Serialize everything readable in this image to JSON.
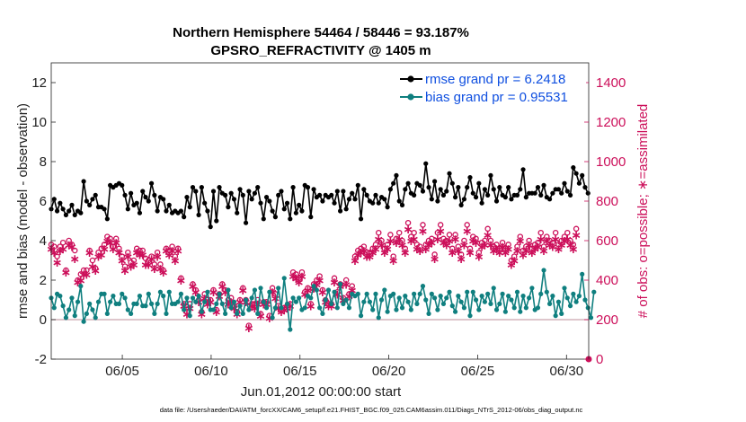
{
  "chart_data": {
    "type": "line",
    "title": "Northern Hemisphere 54464 / 58446 = 93.187%",
    "subtitle": "GPSRO_REFRACTIVITY @ 1405 m",
    "xlabel": "Jun.01,2012 00:00:00 start",
    "ylabel": "rmse and bias (model - observation)",
    "y2label": "# of obs: o=possible; ∗=assimilated",
    "footer": "data file: /Users/raeder/DAI/ATM_forcXX/CAM6_setup/f.e21.FHIST_BGC.f09_025.CAM6assim.011/Diags_NTrS_2012-06/obs_diag_output.nc",
    "xlim": [
      1.0,
      31.25
    ],
    "ylim": [
      -2,
      13
    ],
    "y2lim": [
      0,
      1500
    ],
    "x_ticks": [
      5,
      10,
      15,
      20,
      25,
      30
    ],
    "x_tick_labels": [
      "06/05",
      "06/10",
      "06/15",
      "06/20",
      "06/25",
      "06/30"
    ],
    "y_ticks": [
      -2,
      0,
      2,
      4,
      6,
      8,
      10,
      12
    ],
    "y_tick_labels": [
      "-2",
      "0",
      "2",
      "4",
      "6",
      "8",
      "10",
      "12"
    ],
    "y2_ticks": [
      0,
      200,
      400,
      600,
      800,
      1000,
      1200,
      1400
    ],
    "y2_tick_labels": [
      "0",
      "200",
      "400",
      "600",
      "800",
      "1000",
      "1200",
      "1400"
    ],
    "zero_line": 0,
    "colors": {
      "rmse": "#000000",
      "bias": "#0f7f7f",
      "obs": "#cc0f5a",
      "zero": "#c9a3ad",
      "legend_text": "#0f4fe0"
    },
    "series": [
      {
        "name": "rmse grand pr = 6.2418",
        "marker": "filled-circle",
        "values": [
          5.6,
          6.1,
          5.5,
          5.9,
          5.6,
          5.3,
          5.5,
          5.8,
          5.3,
          5.5,
          5.4,
          7.0,
          6.0,
          5.8,
          6.1,
          6.3,
          5.7,
          5.7,
          5.6,
          5.1,
          6.8,
          6.7,
          6.8,
          6.9,
          6.8,
          6.3,
          5.6,
          6.4,
          5.8,
          5.9,
          5.4,
          6.5,
          6.2,
          6.0,
          6.9,
          6.3,
          5.5,
          6.2,
          6.1,
          5.5,
          5.8,
          5.4,
          5.5,
          5.4,
          5.5,
          5.2,
          6.2,
          5.7,
          6.7,
          6.5,
          5.3,
          6.7,
          5.9,
          5.5,
          4.7,
          6.5,
          5.0,
          6.7,
          6.4,
          6.3,
          5.7,
          6.4,
          6.1,
          5.4,
          6.6,
          6.3,
          4.9,
          6.5,
          6.1,
          6.4,
          6.7,
          5.9,
          5.1,
          6.2,
          6.0,
          5.5,
          5.2,
          6.3,
          6.5,
          5.6,
          5.9,
          5.1,
          6.7,
          5.4,
          5.8,
          5.5,
          6.8,
          6.7,
          5.2,
          6.6,
          6.2,
          6.3,
          6.0,
          6.3,
          6.2,
          6.3,
          5.9,
          6.5,
          5.5,
          6.5,
          5.6,
          6.1,
          6.4,
          6.1,
          6.8,
          5.1,
          6.6,
          6.3,
          6.0,
          5.9,
          6.3,
          5.9,
          6.2,
          6.1,
          5.7,
          6.6,
          6.9,
          7.3,
          6.0,
          5.8,
          6.6,
          6.9,
          6.4,
          6.3,
          6.9,
          6.8,
          6.5,
          7.9,
          6.7,
          6.1,
          7.0,
          6.0,
          6.6,
          6.3,
          6.5,
          7.4,
          6.9,
          6.2,
          6.7,
          5.8,
          6.1,
          6.7,
          7.2,
          6.4,
          6.2,
          6.9,
          5.9,
          6.6,
          6.3,
          7.3,
          6.6,
          6.0,
          6.7,
          6.3,
          6.2,
          6.7,
          6.1,
          6.3,
          6.3,
          6.6,
          7.6,
          6.2,
          6.4,
          6.4,
          6.4,
          6.7,
          6.3,
          6.8,
          6.2,
          6.1,
          6.4,
          6.6,
          6.6,
          6.4,
          6.9,
          6.5,
          6.3,
          7.7,
          7.4,
          6.9,
          7.3,
          6.7,
          6.4
        ]
      },
      {
        "name": "bias grand pr = 0.95531",
        "marker": "filled-circle",
        "values": [
          1.1,
          0.6,
          1.3,
          1.2,
          0.7,
          0.1,
          0.5,
          1.1,
          0.2,
          0.9,
          1.7,
          -0.1,
          0.3,
          0.8,
          0.5,
          0.1,
          0.9,
          1.3,
          1.3,
          0.3,
          0.9,
          1.2,
          0.8,
          0.8,
          1.3,
          1.1,
          0.5,
          0.3,
          0.8,
          0.8,
          1.2,
          0.7,
          0.7,
          1.3,
          0.8,
          0.3,
          0.8,
          1.4,
          1.2,
          0.3,
          1.4,
          0.8,
          0.8,
          0.9,
          1.3,
          0.5,
          1.1,
          0.2,
          1.1,
          0.9,
          1.2,
          0.4,
          0.9,
          1.4,
          0.5,
          0.5,
          0.8,
          1.3,
          0.8,
          0.3,
          1.5,
          0.6,
          0.9,
          0.3,
          0.7,
          0.3,
          1.0,
          0.5,
          1.1,
          1.5,
          0.3,
          1.6,
          0.9,
          0.6,
          1.4,
          0.1,
          0.6,
          1.6,
          0.6,
          2.1,
          0.8,
          -0.5,
          1.1,
          0.9,
          1.1,
          0.5,
          0.6,
          1.2,
          1.1,
          1.7,
          1.5,
          0.6,
          0.3,
          1.0,
          1.5,
          0.8,
          1.4,
          0.6,
          1.8,
          0.8,
          1.0,
          0.6,
          1.3,
          1.2,
          1.3,
          0.2,
          0.9,
          1.3,
          0.9,
          0.5,
          1.3,
          0.1,
          1.0,
          1.5,
          0.4,
          1.2,
          1.3,
          0.5,
          1.1,
          0.6,
          1.2,
          0.9,
          0.5,
          1.3,
          0.8,
          1.3,
          1.7,
          1.0,
          0.3,
          1.3,
          1.1,
          0.5,
          1.2,
          0.8,
          1.1,
          1.4,
          0.7,
          0.4,
          1.2,
          0.9,
          0.6,
          1.4,
          0.2,
          1.4,
          1.0,
          0.5,
          1.2,
          0.9,
          1.3,
          0.8,
          1.6,
          0.5,
          0.8,
          1.3,
          0.4,
          1.2,
          1.0,
          0.6,
          1.4,
          0.4,
          1.2,
          0.6,
          1.1,
          1.6,
          0.5,
          0.6,
          1.3,
          2.5,
          1.4,
          0.8,
          1.2,
          0.2,
          0.9,
          0.3,
          1.6,
          1.1,
          0.7,
          1.3,
          0.9,
          1.2,
          2.3,
          1.0,
          0.6,
          0.1,
          1.4
        ]
      },
      {
        "name": "possible obs",
        "marker": "open-circle",
        "axis": "right",
        "values": [
          580,
          570,
          520,
          570,
          590,
          450,
          600,
          580,
          550,
          400,
          430,
          450,
          450,
          550,
          500,
          460,
          540,
          560,
          580,
          620,
          610,
          570,
          610,
          560,
          520,
          470,
          540,
          490,
          500,
          560,
          550,
          550,
          510,
          500,
          520,
          480,
          540,
          480,
          450,
          560,
          550,
          570,
          520,
          560,
          410,
          280,
          240,
          280,
          380,
          350,
          300,
          240,
          330,
          300,
          300,
          350,
          250,
          330,
          380,
          350,
          300,
          310,
          270,
          240,
          300,
          360,
          300,
          170,
          280,
          280,
          300,
          230,
          290,
          290,
          220,
          360,
          330,
          270,
          250,
          260,
          270,
          280,
          440,
          430,
          410,
          440,
          340,
          360,
          280,
          380,
          400,
          420,
          350,
          300,
          280,
          280,
          410,
          340,
          380,
          310,
          400,
          330,
          370,
          520,
          550,
          560,
          570,
          540,
          540,
          560,
          580,
          640,
          600,
          560,
          580,
          630,
          520,
          610,
          640,
          600,
          560,
          690,
          620,
          640,
          580,
          570,
          680,
          580,
          600,
          610,
          530,
          640,
          680,
          610,
          600,
          630,
          560,
          630,
          570,
          530,
          600,
          680,
          560,
          620,
          610,
          540,
          590,
          600,
          660,
          600,
          570,
          580,
          560,
          590,
          560,
          580,
          500,
          520,
          570,
          620,
          550,
          570,
          600,
          560,
          580,
          590,
          640,
          570,
          620,
          600,
          590,
          640,
          580,
          600,
          620,
          640,
          600,
          580,
          660
        ]
      },
      {
        "name": "assimilated obs",
        "marker": "asterisk",
        "axis": "right",
        "values": [
          560,
          540,
          490,
          550,
          560,
          440,
          580,
          570,
          510,
          390,
          400,
          430,
          430,
          540,
          470,
          450,
          520,
          530,
          560,
          600,
          590,
          560,
          590,
          540,
          500,
          450,
          520,
          470,
          480,
          540,
          530,
          530,
          480,
          480,
          510,
          460,
          520,
          460,
          440,
          550,
          530,
          550,
          500,
          550,
          400,
          270,
          230,
          260,
          370,
          340,
          290,
          230,
          310,
          280,
          290,
          340,
          240,
          320,
          370,
          340,
          280,
          290,
          260,
          230,
          290,
          350,
          290,
          160,
          270,
          260,
          280,
          220,
          280,
          280,
          210,
          340,
          310,
          260,
          240,
          250,
          260,
          270,
          420,
          410,
          390,
          420,
          330,
          350,
          270,
          360,
          380,
          400,
          340,
          290,
          270,
          270,
          390,
          330,
          370,
          300,
          380,
          320,
          350,
          500,
          530,
          540,
          550,
          520,
          520,
          540,
          560,
          610,
          580,
          540,
          560,
          600,
          500,
          590,
          610,
          580,
          540,
          660,
          600,
          610,
          560,
          550,
          650,
          560,
          580,
          590,
          510,
          610,
          650,
          590,
          580,
          600,
          540,
          610,
          550,
          510,
          580,
          650,
          540,
          600,
          590,
          520,
          570,
          580,
          630,
          580,
          550,
          560,
          540,
          570,
          540,
          560,
          480,
          500,
          550,
          600,
          530,
          550,
          580,
          540,
          560,
          570,
          610,
          550,
          600,
          580,
          570,
          610,
          560,
          580,
          600,
          610,
          580,
          560,
          630
        ]
      }
    ]
  }
}
